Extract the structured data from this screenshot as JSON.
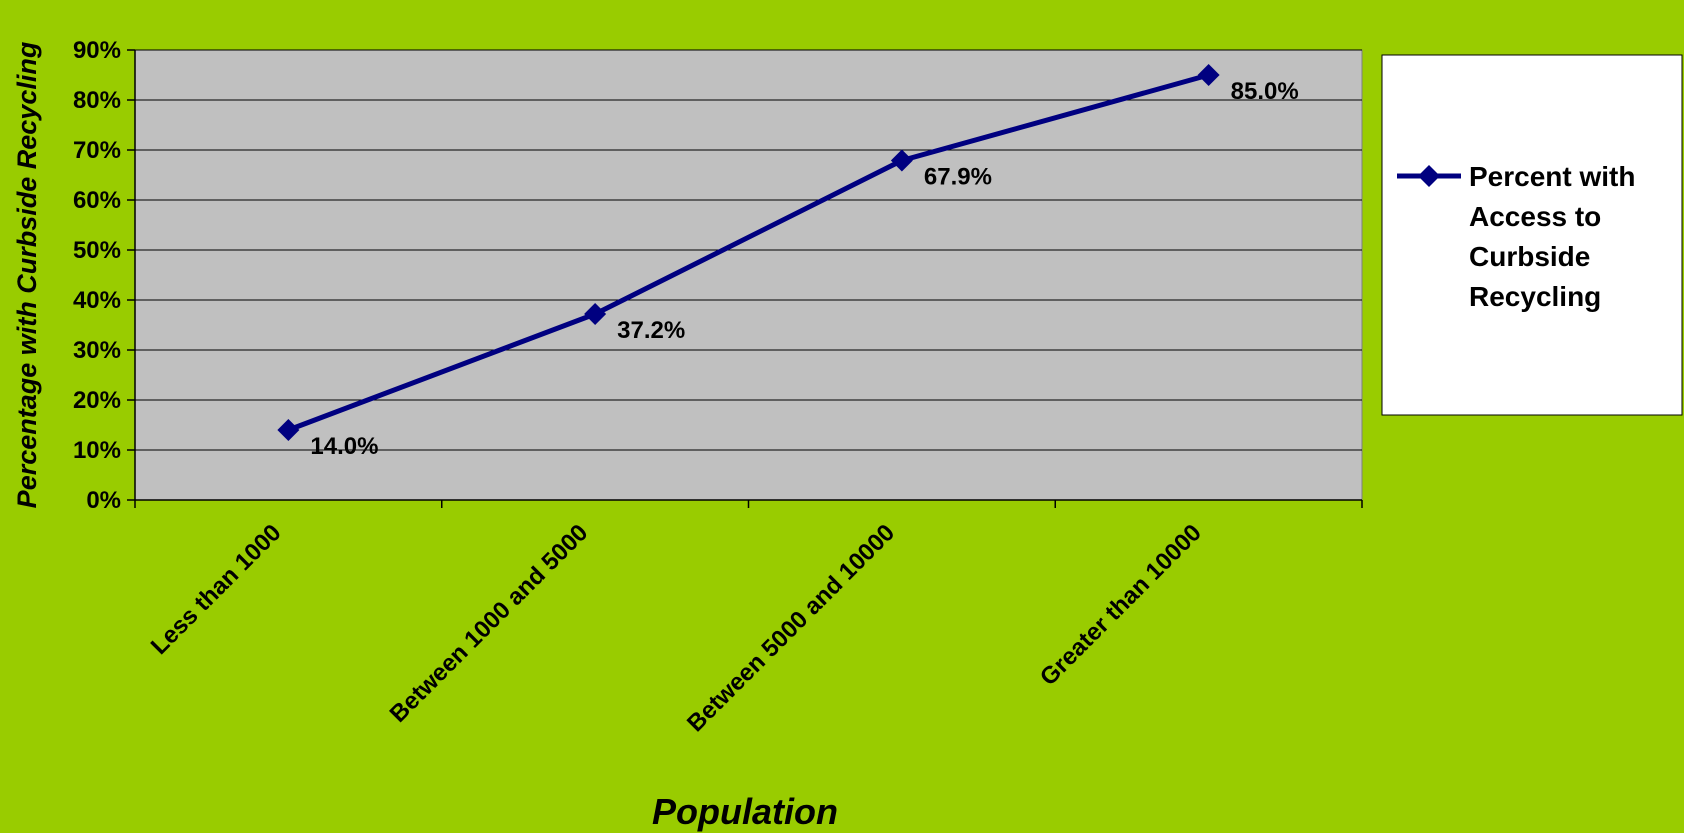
{
  "chart_data": {
    "type": "line",
    "title": "",
    "xlabel": "Population",
    "ylabel": "Percentage with Curbside Recycling",
    "categories": [
      "Less than 1000",
      "Between 1000 and 5000",
      "Between 5000 and 10000",
      "Greater than 10000"
    ],
    "series": [
      {
        "name": "Percent with Access to Curbside Recycling",
        "name_lines": [
          "Percent with",
          "Access to",
          "Curbside",
          "Recycling"
        ],
        "values": [
          14.0,
          37.2,
          67.9,
          85.0
        ],
        "labels": [
          "14.0%",
          "37.2%",
          "67.9%",
          "85.0%"
        ],
        "color": "#000080"
      }
    ],
    "ylim": [
      0,
      90
    ],
    "yticks": [
      0,
      10,
      20,
      30,
      40,
      50,
      60,
      70,
      80,
      90
    ],
    "ytick_labels": [
      "0%",
      "10%",
      "20%",
      "30%",
      "40%",
      "50%",
      "60%",
      "70%",
      "80%",
      "90%"
    ],
    "grid": true,
    "legend_position": "right",
    "colors": {
      "background": "#99cc00",
      "plot_area": "#c0c0c0",
      "gridline": "#000000",
      "legend_bg": "#ffffff"
    }
  }
}
